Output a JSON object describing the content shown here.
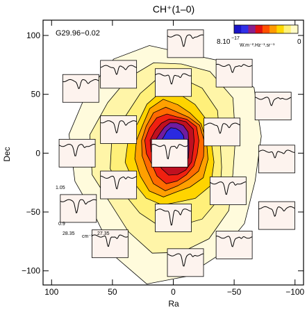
{
  "chart_data": {
    "type": "heatmap",
    "title": "CH⁺(1–0)",
    "xlabel": "Ra",
    "ylabel": "Dec",
    "source_label": "G29.96−0.02",
    "xlim": [
      107,
      -107
    ],
    "ylim": [
      -112,
      113
    ],
    "x_reversed": true,
    "x_ticks": [
      100,
      50,
      0,
      -50,
      -100
    ],
    "x_tick_labels": [
      "100",
      "50",
      "0",
      "−50",
      "−100"
    ],
    "y_ticks": [
      100,
      50,
      0,
      -50,
      -100
    ],
    "y_tick_labels": [
      "100",
      "50",
      "0",
      "−50",
      "−100"
    ],
    "colorbar": {
      "label_max": "8.10",
      "label_exp": "−17",
      "label_units": "W.m⁻².Hz⁻¹.sr⁻¹",
      "label_min": "0",
      "colors": [
        "#1a14c8",
        "#3030e8",
        "#8a1e8c",
        "#e01010",
        "#ff5000",
        "#ff9a00",
        "#ffd800",
        "#fff27a",
        "#fffbc8"
      ]
    },
    "contour_levels": [
      {
        "level": 0.05,
        "radius": [
          78,
          100
        ],
        "center": [
          5,
          -5
        ],
        "color": "#fffbdc"
      },
      {
        "level": 0.12,
        "radius": [
          60,
          82
        ],
        "center": [
          5,
          -2
        ],
        "color": "#fff5a8"
      },
      {
        "level": 0.2,
        "radius": [
          46,
          64
        ],
        "center": [
          3,
          0
        ],
        "color": "#fff07a"
      },
      {
        "level": 0.3,
        "radius": [
          36,
          48
        ],
        "center": [
          2,
          2
        ],
        "color": "#ffd400"
      },
      {
        "level": 0.4,
        "radius": [
          30,
          40
        ],
        "center": [
          2,
          3
        ],
        "color": "#ffa000"
      },
      {
        "level": 0.5,
        "radius": [
          26,
          34
        ],
        "center": [
          1,
          4
        ],
        "color": "#ff6a00"
      },
      {
        "level": 0.6,
        "radius": [
          22,
          29
        ],
        "center": [
          1,
          5
        ],
        "color": "#f02010"
      },
      {
        "level": 0.7,
        "radius": [
          18,
          24
        ],
        "center": [
          0,
          6
        ],
        "color": "#c01020"
      },
      {
        "level": 0.8,
        "radius": [
          14,
          19
        ],
        "center": [
          0,
          7
        ],
        "color": "#701ca0"
      },
      {
        "level": 0.9,
        "radius": [
          10,
          13
        ],
        "center": [
          0,
          8
        ],
        "color": "#2a2ae0"
      }
    ],
    "spectra": [
      {
        "ra": -10,
        "dec": 93,
        "depth": 0.5
      },
      {
        "ra": 76,
        "dec": 55,
        "depth": 0.4
      },
      {
        "ra": 45,
        "dec": 67,
        "depth": 0.45
      },
      {
        "ra": 0,
        "dec": 60,
        "depth": 0.55
      },
      {
        "ra": -50,
        "dec": 68,
        "depth": 0.4
      },
      {
        "ra": -82,
        "dec": 40,
        "depth": 0.35
      },
      {
        "ra": 79,
        "dec": 0,
        "depth": 0.5
      },
      {
        "ra": 45,
        "dec": 20,
        "depth": 0.55
      },
      {
        "ra": -40,
        "dec": 18,
        "depth": 0.5
      },
      {
        "ra": -85,
        "dec": -5,
        "depth": 0.4
      },
      {
        "ra": 3,
        "dec": 0,
        "depth": 0.75
      },
      {
        "ra": 45,
        "dec": -27,
        "depth": 0.6
      },
      {
        "ra": -45,
        "dec": -32,
        "depth": 0.55
      },
      {
        "ra": 78,
        "dec": -47,
        "depth": 0.6
      },
      {
        "ra": -85,
        "dec": -53,
        "depth": 0.45
      },
      {
        "ra": 0,
        "dec": -55,
        "depth": 0.85
      },
      {
        "ra": 52,
        "dec": -77,
        "depth": 0.6
      },
      {
        "ra": -50,
        "dec": -78,
        "depth": 0.5
      },
      {
        "ra": -10,
        "dec": -93,
        "depth": 0.55
      }
    ],
    "inset_axes": {
      "y_top": "1.05",
      "y_bottom": "0.9",
      "x_left": "28.35",
      "x_unit": "cm⁻¹",
      "x_right": "27.35"
    }
  }
}
